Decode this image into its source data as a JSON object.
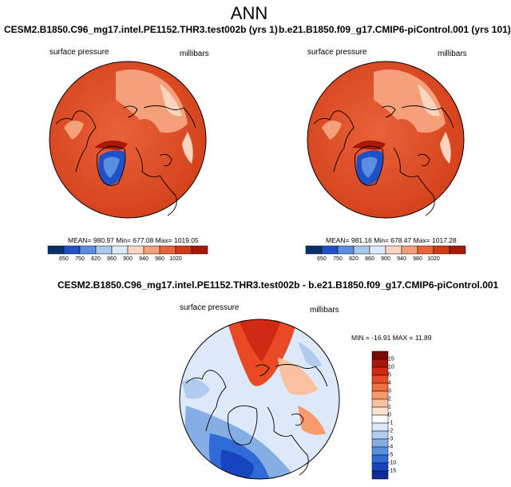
{
  "main_title": "ANN",
  "panels": [
    {
      "title": "CESM2.B1850.C96_mg17.intel.PE1152.THR3.test002b (yrs 1)",
      "var_label": "surface pressure",
      "unit_label": "millibars",
      "stats": "MEAN= 980.97  Min= 677.08  Max= 1019.05"
    },
    {
      "title": "b.e21.B1850.f09_g17.CMIP6-piControl.001 (yrs 101)",
      "var_label": "surface pressure",
      "unit_label": "millibars",
      "stats": "MEAN= 981.16  Min= 678.47  Max= 1017.28"
    },
    {
      "title": "CESM2.B1850.C96_mg17.intel.PE1152.THR3.test002b - b.e21.B1850.f09_g17.CMIP6-piControl.001",
      "var_label": "surface pressure",
      "unit_label": "millibars",
      "stats": "MIN = -16.91  MAX =  11.89"
    }
  ],
  "colorbar_abs": {
    "ticks": [
      "650",
      "750",
      "820",
      "860",
      "900",
      "940",
      "980",
      "1020"
    ],
    "colors": [
      "#08306b",
      "#2050c8",
      "#5a8ee0",
      "#a8c8ee",
      "#ddeaf8",
      "#fbd5c0",
      "#f5a07a",
      "#e8623a",
      "#d03a14",
      "#a81808"
    ]
  },
  "colorbar_diff": {
    "ticks": [
      "15",
      "10",
      "5",
      "4",
      "3",
      "2",
      "1",
      "0",
      "-1",
      "-2",
      "-3",
      "-4",
      "-5",
      "-10",
      "-15"
    ],
    "colors": [
      "#7a0a08",
      "#a81808",
      "#d02a14",
      "#e84a24",
      "#f4703e",
      "#f89a6a",
      "#fbc0a0",
      "#fde2d4",
      "#ffffff",
      "#dde8f8",
      "#b0cbee",
      "#84aee4",
      "#5a8ee0",
      "#2f6ad6",
      "#1844c0",
      "#0c2a98"
    ]
  },
  "chart_data": [
    {
      "type": "heatmap",
      "projection": "polar stereographic (north pole)",
      "title": "CESM2.B1850.C96_mg17.intel.PE1152.THR3.test002b (yrs 1)",
      "variable": "surface pressure",
      "units": "millibars",
      "mean": 980.97,
      "min": 677.08,
      "max": 1019.05,
      "contour_levels": [
        650,
        750,
        820,
        860,
        900,
        940,
        980,
        1020
      ]
    },
    {
      "type": "heatmap",
      "projection": "polar stereographic (north pole)",
      "title": "b.e21.B1850.f09_g17.CMIP6-piControl.001 (yrs 101)",
      "variable": "surface pressure",
      "units": "millibars",
      "mean": 981.16,
      "min": 678.47,
      "max": 1017.28,
      "contour_levels": [
        650,
        750,
        820,
        860,
        900,
        940,
        980,
        1020
      ]
    },
    {
      "type": "heatmap",
      "projection": "polar stereographic (north pole)",
      "title": "CESM2.B1850.C96_mg17.intel.PE1152.THR3.test002b - b.e21.B1850.f09_g17.CMIP6-piControl.001",
      "variable": "surface pressure",
      "units": "millibars",
      "min": -16.91,
      "max": 11.89,
      "contour_levels": [
        -15,
        -10,
        -5,
        -4,
        -3,
        -2,
        -1,
        0,
        1,
        2,
        3,
        4,
        5,
        10,
        15
      ]
    }
  ]
}
